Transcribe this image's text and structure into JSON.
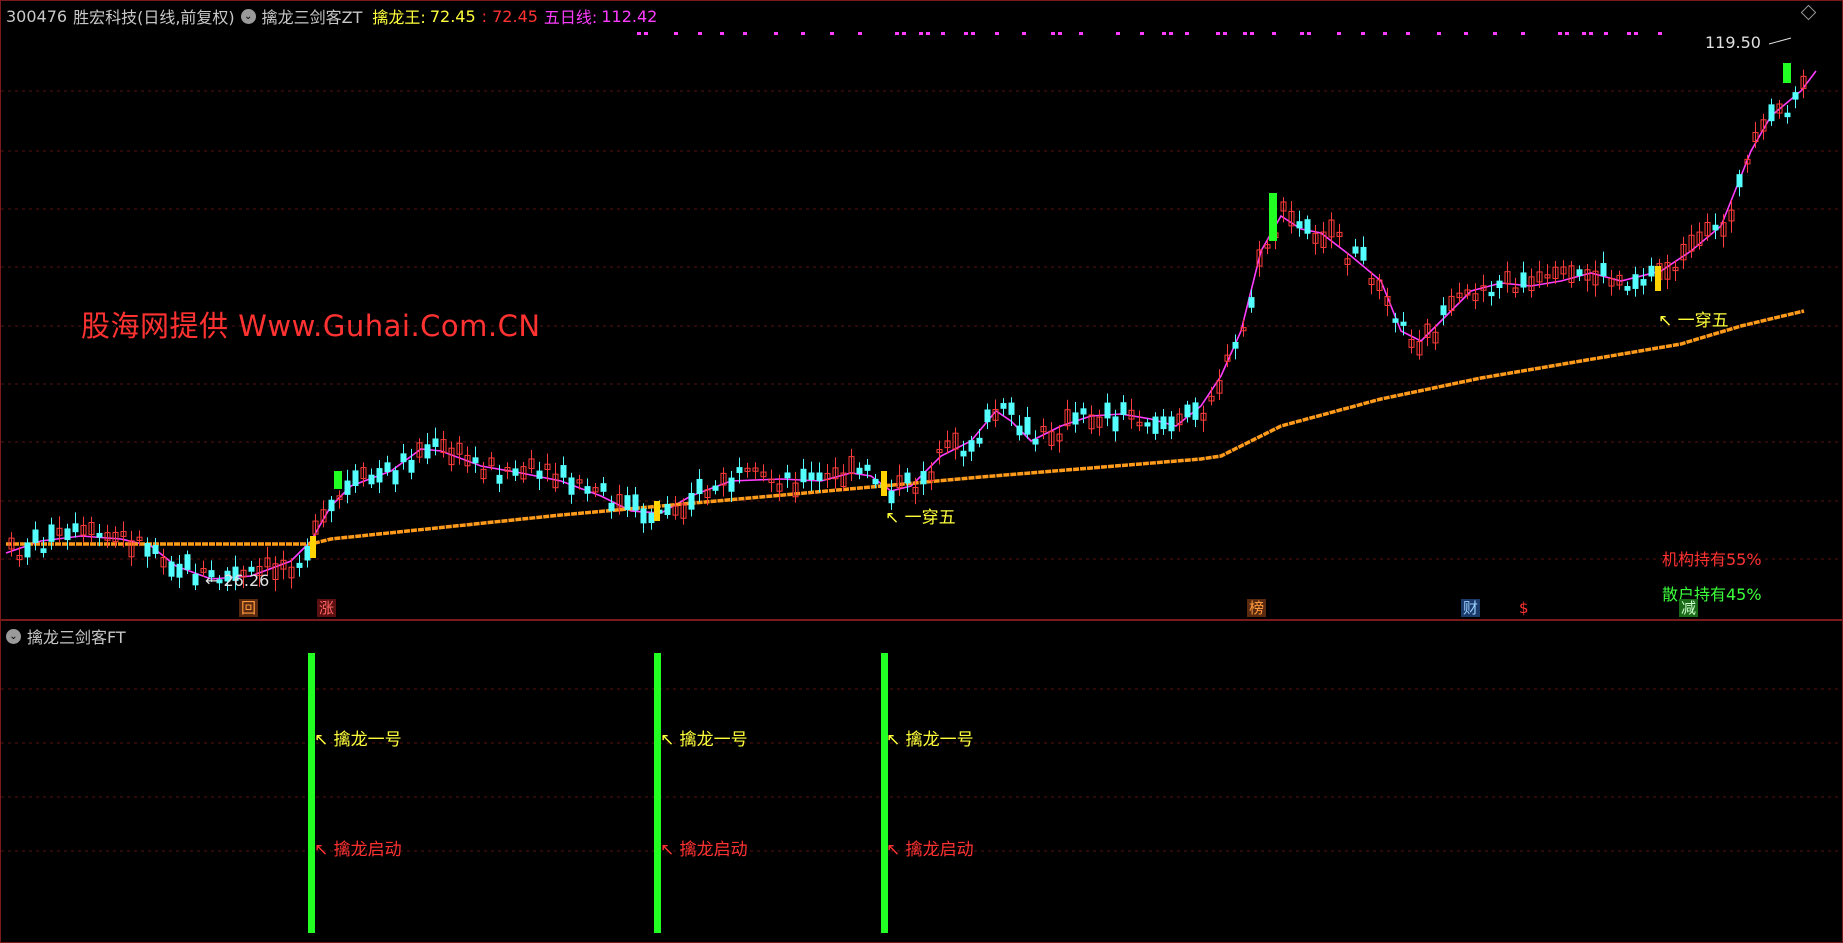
{
  "header": {
    "stock_code": "300476",
    "stock_name": "胜宏科技",
    "period": "(日线,前复权)",
    "indicator_name": "擒龙三剑客ZT",
    "qlw_label": "擒龙王:",
    "qlw_value": "72.45",
    "qlw_value2": ": 72.45",
    "wrx_label": "五日线:",
    "wrx_value": "112.42"
  },
  "watermark": "股海网提供 Www.Guhai.Com.CN",
  "annotations": {
    "low_price": "← 26.26",
    "high_price": "119.50",
    "cross_five_1": "↖ 一穿五",
    "cross_five_2": "↖ 一穿五",
    "institution": "机构持有55%",
    "retail": "散户持有45%"
  },
  "badges": [
    {
      "label": "回",
      "color": "#ff9a3c",
      "bg": "#5a2a10"
    },
    {
      "label": "涨",
      "color": "#ff6464",
      "bg": "#5a1010"
    },
    {
      "label": "榜",
      "color": "#ff9a3c",
      "bg": "#5a2a10"
    },
    {
      "label": "财",
      "color": "#9ad0ff",
      "bg": "#1a3a6a"
    },
    {
      "label": "$",
      "color": "#ff3232",
      "bg": "transparent"
    },
    {
      "label": "减",
      "color": "#cfffcf",
      "bg": "#1a6a1a"
    }
  ],
  "sub_panel": {
    "title": "擒龙三剑客FT",
    "signals": [
      {
        "label1": "↖ 擒龙一号",
        "label2": "↖ 擒龙启动"
      },
      {
        "label1": "↖ 擒龙一号",
        "label2": "↖ 擒龙启动"
      },
      {
        "label1": "↖ 擒龙一号",
        "label2": "↖ 擒龙启动"
      }
    ]
  },
  "colors": {
    "up": "#ff3c3c",
    "down": "#54ffff",
    "ma5": "#ff3cff",
    "long_ma": "#ff9a1a",
    "signal": "#22ff22"
  },
  "icons": [
    "collapse-chevron-icon",
    "diamond-icon"
  ]
}
